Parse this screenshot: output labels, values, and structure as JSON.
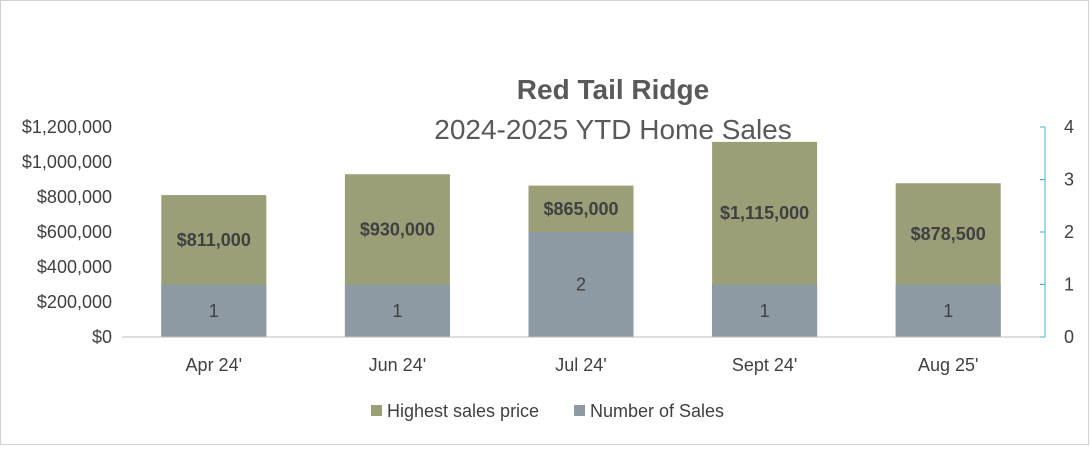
{
  "chart_data": {
    "type": "bar",
    "title": "Red Tail Ridge",
    "subtitle": "2024-2025 YTD Home Sales",
    "categories": [
      "Apr 24'",
      "Jun 24'",
      "Jul 24'",
      "Sept 24'",
      "Aug 25'"
    ],
    "series": [
      {
        "name": "Highest sales price",
        "axis": "left",
        "values": [
          811000,
          930000,
          865000,
          1115000,
          878500
        ],
        "labels": [
          "$811,000",
          "$930,000",
          "$865,000",
          "$1,115,000",
          "$878,500"
        ],
        "color": "#9a9f78"
      },
      {
        "name": "Number of Sales",
        "axis": "right",
        "values": [
          1,
          1,
          2,
          1,
          1
        ],
        "labels": [
          "1",
          "1",
          "2",
          "1",
          "1"
        ],
        "color": "#8d99a3"
      }
    ],
    "y_left": {
      "range": [
        0,
        1200000
      ],
      "ticks": [
        0,
        200000,
        400000,
        600000,
        800000,
        1000000,
        1200000
      ],
      "tick_labels": [
        "$0",
        "$200,000",
        "$400,000",
        "$600,000",
        "$800,000",
        "$1,000,000",
        "$1,200,000"
      ]
    },
    "y_right": {
      "range": [
        0,
        4
      ],
      "ticks": [
        0,
        1,
        2,
        3,
        4
      ],
      "tick_labels": [
        "0",
        "1",
        "2",
        "3",
        "4"
      ],
      "axis_color": "#4bacc6"
    },
    "grid": false,
    "legend_position": "bottom"
  }
}
